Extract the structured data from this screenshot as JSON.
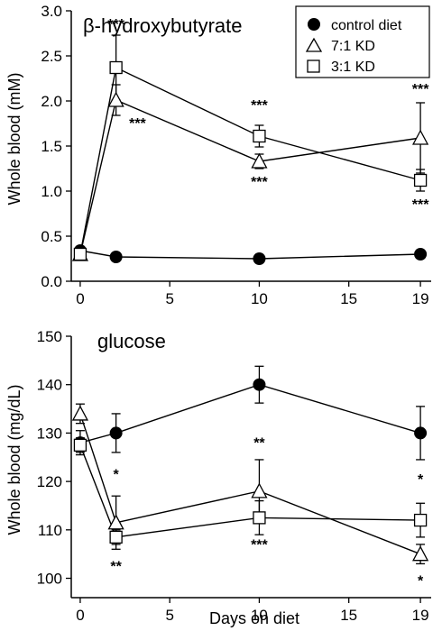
{
  "chart_data": [
    {
      "type": "line",
      "title": "β-hydroxybutyrate",
      "xlabel": "",
      "ylabel": "Whole blood (mM)",
      "xlim": [
        -0.5,
        19.6
      ],
      "ylim": [
        0,
        3.0
      ],
      "xticks": [
        "0",
        "5",
        "10",
        "15",
        "19"
      ],
      "xtick_values": [
        0,
        5,
        10,
        15,
        19
      ],
      "yticks": [
        "0.0",
        "0.5",
        "1.0",
        "1.5",
        "2.0",
        "2.5",
        "3.0"
      ],
      "ytick_values": [
        0,
        0.5,
        1.0,
        1.5,
        2.0,
        2.5,
        3.0
      ],
      "legend": "top-right",
      "series": [
        {
          "name": "control diet",
          "marker": "filled-circle",
          "x": [
            0,
            2,
            10,
            19
          ],
          "values": [
            0.34,
            0.27,
            0.25,
            0.3
          ],
          "error": [
            0.02,
            0.02,
            0.02,
            0.02
          ]
        },
        {
          "name": "7:1 KD",
          "marker": "open-triangle",
          "x": [
            0,
            2,
            10,
            19
          ],
          "values": [
            0.3,
            2.01,
            1.33,
            1.59
          ],
          "error": [
            0.02,
            0.17,
            0.08,
            0.39
          ]
        },
        {
          "name": "3:1 KD",
          "marker": "open-square",
          "x": [
            0,
            2,
            10,
            19
          ],
          "values": [
            0.3,
            2.37,
            1.61,
            1.12
          ],
          "error": [
            0.02,
            0.36,
            0.12,
            0.12
          ]
        }
      ],
      "annotations": [
        {
          "text": "***",
          "x": 2,
          "y": 2.8
        },
        {
          "text": "***",
          "x": 3.2,
          "y": 1.7
        },
        {
          "text": "***",
          "x": 10,
          "y": 1.9
        },
        {
          "text": "***",
          "x": 10,
          "y": 1.05
        },
        {
          "text": "***",
          "x": 19,
          "y": 2.08
        },
        {
          "text": "***",
          "x": 19,
          "y": 0.8
        }
      ]
    },
    {
      "type": "line",
      "title": "glucose",
      "xlabel": "Days on diet",
      "ylabel": "Whole blood (mg/dL)",
      "xlim": [
        -0.5,
        19.6
      ],
      "ylim": [
        96,
        150
      ],
      "xticks": [
        "0",
        "5",
        "10",
        "15",
        "19"
      ],
      "xtick_values": [
        0,
        5,
        10,
        15,
        19
      ],
      "yticks": [
        "100",
        "110",
        "120",
        "130",
        "140",
        "150"
      ],
      "ytick_values": [
        100,
        110,
        120,
        130,
        140,
        150
      ],
      "legend": "none",
      "series": [
        {
          "name": "control diet",
          "marker": "filled-circle",
          "x": [
            0,
            2,
            10,
            19
          ],
          "values": [
            128,
            130,
            140,
            130
          ],
          "error": [
            2.5,
            4,
            3.8,
            5.5
          ]
        },
        {
          "name": "7:1 KD",
          "marker": "open-triangle",
          "x": [
            0,
            2,
            10,
            19
          ],
          "values": [
            134,
            111.5,
            118,
            105
          ],
          "error": [
            2,
            5.5,
            6.5,
            2
          ]
        },
        {
          "name": "3:1 KD",
          "marker": "open-square",
          "x": [
            0,
            2,
            10,
            19
          ],
          "values": [
            127.5,
            108.5,
            112.5,
            112
          ],
          "error": [
            1.5,
            1.5,
            3.5,
            3.5
          ]
        }
      ],
      "annotations": [
        {
          "text": "*",
          "x": 2,
          "y": 120.5
        },
        {
          "text": "**",
          "x": 2,
          "y": 101.5
        },
        {
          "text": "**",
          "x": 10,
          "y": 127
        },
        {
          "text": "***",
          "x": 10,
          "y": 106
        },
        {
          "text": "*",
          "x": 19,
          "y": 119.5
        },
        {
          "text": "*",
          "x": 19,
          "y": 98.5
        }
      ]
    }
  ]
}
